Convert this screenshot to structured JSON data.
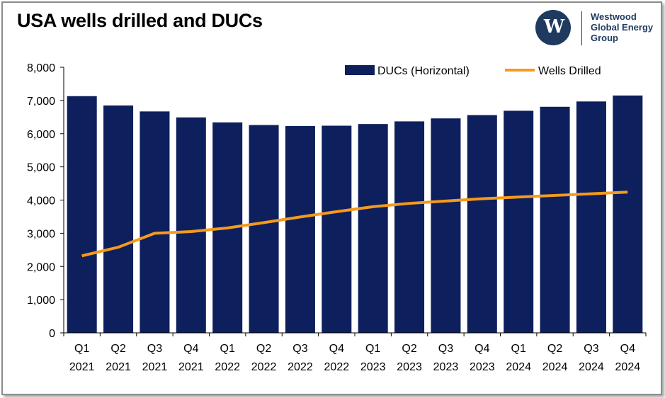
{
  "header": {
    "title": "USA wells drilled and DUCs"
  },
  "logo": {
    "monogram": "W",
    "line1": "Westwood",
    "line2": "Global Energy",
    "line3": "Group"
  },
  "colors": {
    "bar": "#0d1f5c",
    "line": "#f59a1b",
    "axis": "#000000",
    "logo": "#1f3a5f"
  },
  "chart_data": {
    "type": "bar",
    "title": "USA wells drilled and DUCs",
    "xlabel": "",
    "ylabel": "",
    "ylim": [
      0,
      8000
    ],
    "yticks": [
      "0",
      "1,000",
      "2,000",
      "3,000",
      "4,000",
      "5,000",
      "6,000",
      "7,000",
      "8,000"
    ],
    "ytick_values": [
      0,
      1000,
      2000,
      3000,
      4000,
      5000,
      6000,
      7000,
      8000
    ],
    "grid": false,
    "legend_position": "top-right",
    "categories": [
      [
        "Q1",
        "2021"
      ],
      [
        "Q2",
        "2021"
      ],
      [
        "Q3",
        "2021"
      ],
      [
        "Q4",
        "2021"
      ],
      [
        "Q1",
        "2022"
      ],
      [
        "Q2",
        "2022"
      ],
      [
        "Q3",
        "2022"
      ],
      [
        "Q4",
        "2022"
      ],
      [
        "Q1",
        "2023"
      ],
      [
        "Q2",
        "2023"
      ],
      [
        "Q3",
        "2023"
      ],
      [
        "Q4",
        "2023"
      ],
      [
        "Q1",
        "2024"
      ],
      [
        "Q2",
        "2024"
      ],
      [
        "Q3",
        "2024"
      ],
      [
        "Q4",
        "2024"
      ]
    ],
    "series": [
      {
        "name": "DUCs (Horizontal)",
        "type": "bar",
        "color": "#0d1f5c",
        "values": [
          7130,
          6850,
          6670,
          6490,
          6340,
          6260,
          6230,
          6240,
          6290,
          6370,
          6460,
          6560,
          6690,
          6810,
          6970,
          7150
        ]
      },
      {
        "name": "Wells Drilled",
        "type": "line",
        "color": "#f59a1b",
        "values": [
          2320,
          2580,
          3000,
          3050,
          3160,
          3320,
          3490,
          3650,
          3800,
          3900,
          3970,
          4040,
          4090,
          4140,
          4190,
          4240
        ]
      }
    ]
  }
}
